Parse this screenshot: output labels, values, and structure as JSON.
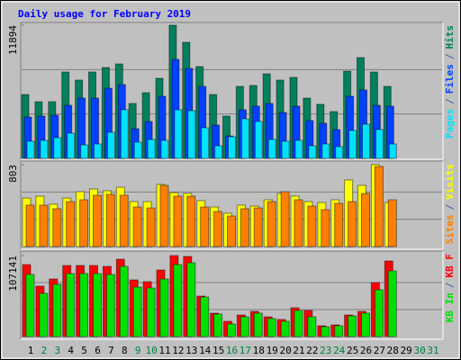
{
  "title": "Daily usage for February 2019",
  "x_axis": {
    "categories": [
      "1",
      "2",
      "3",
      "4",
      "5",
      "6",
      "7",
      "8",
      "9",
      "10",
      "11",
      "12",
      "13",
      "14",
      "15",
      "16",
      "17",
      "18",
      "19",
      "20",
      "21",
      "22",
      "23",
      "24",
      "25",
      "26",
      "27",
      "28",
      "29",
      "30",
      "31"
    ],
    "label_colors": [
      "#000000",
      "#008040",
      "#008040",
      "#000000",
      "#000000",
      "#000000",
      "#000000",
      "#000000",
      "#008040",
      "#008040",
      "#000000",
      "#000000",
      "#000000",
      "#000000",
      "#000000",
      "#008040",
      "#008040",
      "#000000",
      "#000000",
      "#000000",
      "#000000",
      "#000000",
      "#008040",
      "#008040",
      "#000000",
      "#000000",
      "#000000",
      "#000000",
      "#000000",
      "#008040",
      "#008040"
    ]
  },
  "legend_separator": "/",
  "chart_data": [
    {
      "type": "bar",
      "ylim": [
        0,
        11894
      ],
      "yticks": [
        11894
      ],
      "series": [
        {
          "name": "Hits",
          "color": "#00805c",
          "values": [
            5706,
            5063,
            5063,
            7715,
            6992,
            7715,
            8117,
            8438,
            4902,
            5867,
            7152,
            11894,
            10367,
            8197,
            5706,
            3777,
            6429,
            6510,
            7554,
            6992,
            7233,
            5384,
            4822,
            4179,
            7795,
            9001,
            7715,
            6429,
            null,
            null,
            null
          ]
        },
        {
          "name": "Files",
          "color": "#0040ff",
          "values": [
            3697,
            3777,
            3857,
            4741,
            5384,
            5384,
            6268,
            6590,
            2652,
            3295,
            5545,
            8840,
            8036,
            6429,
            2973,
            2009,
            4340,
            4661,
            4902,
            4099,
            4661,
            3375,
            3134,
            2572,
            5545,
            6108,
            4741,
            4661,
            null,
            null,
            null
          ]
        },
        {
          "name": "Pages",
          "color": "#00e0ff",
          "values": [
            1527,
            1607,
            1848,
            2250,
            1205,
            1286,
            2331,
            4340,
            1447,
            1688,
            1607,
            4340,
            4259,
            2732,
            1125,
            1929,
            3536,
            3295,
            1688,
            1527,
            1607,
            1125,
            1286,
            1045,
            2491,
            3054,
            2572,
            1286,
            null,
            null,
            null
          ]
        }
      ]
    },
    {
      "type": "bar",
      "ylim": [
        0,
        803
      ],
      "yticks": [
        803
      ],
      "series": [
        {
          "name": "Visits",
          "color": "#ffff00",
          "values": [
            476,
            494,
            415,
            476,
            538,
            565,
            547,
            582,
            441,
            441,
            609,
            529,
            521,
            450,
            388,
            327,
            406,
            397,
            459,
            521,
            494,
            441,
            432,
            459,
            653,
            600,
            803,
            432,
            null,
            null,
            null
          ]
        },
        {
          "name": "Sites",
          "color": "#ff8000",
          "values": [
            406,
            406,
            371,
            441,
            459,
            503,
            512,
            503,
            388,
            379,
            600,
            494,
            494,
            388,
            344,
            300,
            371,
            379,
            441,
            538,
            459,
            397,
            362,
            424,
            441,
            521,
            785,
            459,
            null,
            null,
            null
          ]
        }
      ]
    },
    {
      "type": "bar",
      "ylim": [
        0,
        107141
      ],
      "yticks": [
        107141
      ],
      "series": [
        {
          "name": "KB F",
          "color": "#ff0000",
          "values": [
            95236,
            66666,
            76189,
            94046,
            94046,
            94046,
            92855,
            102380,
            74999,
            72618,
            88094,
            107141,
            106000,
            53570,
            30952,
            20238,
            28571,
            33333,
            26190,
            22619,
            38095,
            34523,
            14285,
            15476,
            28571,
            33333,
            71427,
            99998,
            null,
            null,
            null
          ]
        },
        {
          "name": "KB In",
          "color": "#00e000",
          "values": [
            82141,
            57142,
            69046,
            83332,
            83332,
            83332,
            82141,
            92855,
            65475,
            64284,
            76189,
            95236,
            97617,
            52380,
            29761,
            16666,
            26190,
            30952,
            23809,
            20238,
            34523,
            26190,
            13095,
            14285,
            27380,
            30952,
            61903,
            86903,
            null,
            null,
            null
          ]
        }
      ]
    }
  ]
}
